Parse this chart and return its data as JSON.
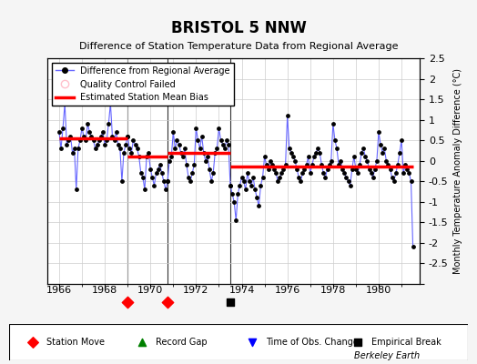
{
  "title": "BRISTOL 5 NNW",
  "subtitle": "Difference of Station Temperature Data from Regional Average",
  "ylabel_right": "Monthly Temperature Anomaly Difference (°C)",
  "credit": "Berkeley Earth",
  "xlim": [
    1965.5,
    1981.8
  ],
  "ylim": [
    -3.0,
    2.5
  ],
  "yticks": [
    -3,
    -2.5,
    -2,
    -1.5,
    -1,
    -0.5,
    0,
    0.5,
    1,
    1.5,
    2,
    2.5
  ],
  "xticks": [
    1966,
    1968,
    1970,
    1972,
    1974,
    1976,
    1978,
    1980
  ],
  "grid_color": "#cccccc",
  "line_color": "#6666ff",
  "dot_color": "#000000",
  "bias_color": "#ff0000",
  "segment_breaks": [
    1969.0,
    1970.75,
    1973.5
  ],
  "bias_values": [
    0.55,
    0.1,
    0.2,
    -0.15
  ],
  "station_moves": [
    1969.0,
    1970.75
  ],
  "empirical_breaks": [
    1973.5
  ],
  "time_obs_changes": [],
  "record_gaps": [],
  "data_x": [
    1966.0,
    1966.083,
    1966.167,
    1966.25,
    1966.333,
    1966.417,
    1966.5,
    1966.583,
    1966.667,
    1966.75,
    1966.833,
    1966.917,
    1967.0,
    1967.083,
    1967.167,
    1967.25,
    1967.333,
    1967.417,
    1967.5,
    1967.583,
    1967.667,
    1967.75,
    1967.833,
    1967.917,
    1968.0,
    1968.083,
    1968.167,
    1968.25,
    1968.333,
    1968.417,
    1968.5,
    1968.583,
    1968.667,
    1968.75,
    1968.833,
    1968.917,
    1969.0,
    1969.083,
    1969.167,
    1969.25,
    1969.333,
    1969.417,
    1969.5,
    1969.583,
    1969.667,
    1969.75,
    1969.833,
    1969.917,
    1970.0,
    1970.083,
    1970.167,
    1970.25,
    1970.333,
    1970.417,
    1970.5,
    1970.583,
    1970.667,
    1970.75,
    1970.833,
    1970.917,
    1971.0,
    1971.083,
    1971.167,
    1971.25,
    1971.333,
    1971.417,
    1971.5,
    1971.583,
    1971.667,
    1971.75,
    1971.833,
    1971.917,
    1972.0,
    1972.083,
    1972.167,
    1972.25,
    1972.333,
    1972.417,
    1972.5,
    1972.583,
    1972.667,
    1972.75,
    1972.833,
    1972.917,
    1973.0,
    1973.083,
    1973.167,
    1973.25,
    1973.333,
    1973.417,
    1973.5,
    1973.583,
    1973.667,
    1973.75,
    1973.833,
    1973.917,
    1974.0,
    1974.083,
    1974.167,
    1974.25,
    1974.333,
    1974.417,
    1974.5,
    1974.583,
    1974.667,
    1974.75,
    1974.833,
    1974.917,
    1975.0,
    1975.083,
    1975.167,
    1975.25,
    1975.333,
    1975.417,
    1975.5,
    1975.583,
    1975.667,
    1975.75,
    1975.833,
    1975.917,
    1976.0,
    1976.083,
    1976.167,
    1976.25,
    1976.333,
    1976.417,
    1976.5,
    1976.583,
    1976.667,
    1976.75,
    1976.833,
    1976.917,
    1977.0,
    1977.083,
    1977.167,
    1977.25,
    1977.333,
    1977.417,
    1977.5,
    1977.583,
    1977.667,
    1977.75,
    1977.833,
    1977.917,
    1978.0,
    1978.083,
    1978.167,
    1978.25,
    1978.333,
    1978.417,
    1978.5,
    1978.583,
    1978.667,
    1978.75,
    1978.833,
    1978.917,
    1979.0,
    1979.083,
    1979.167,
    1979.25,
    1979.333,
    1979.417,
    1979.5,
    1979.583,
    1979.667,
    1979.75,
    1979.833,
    1979.917,
    1980.0,
    1980.083,
    1980.167,
    1980.25,
    1980.333,
    1980.417,
    1980.5,
    1980.583,
    1980.667,
    1980.75,
    1980.833,
    1980.917,
    1981.0,
    1981.083,
    1981.167,
    1981.25,
    1981.333,
    1981.417,
    1981.5
  ],
  "data_y": [
    0.7,
    0.3,
    0.8,
    1.4,
    0.4,
    0.5,
    0.6,
    0.2,
    0.3,
    -0.7,
    0.3,
    0.5,
    0.8,
    0.6,
    0.5,
    0.9,
    0.7,
    0.6,
    0.5,
    0.3,
    0.4,
    0.5,
    0.6,
    0.7,
    0.4,
    0.5,
    0.9,
    1.4,
    0.6,
    0.5,
    0.7,
    0.4,
    0.3,
    -0.5,
    0.2,
    0.4,
    0.6,
    0.3,
    0.2,
    0.5,
    0.4,
    0.3,
    0.1,
    -0.3,
    -0.4,
    -0.7,
    0.1,
    0.2,
    -0.2,
    -0.4,
    -0.6,
    -0.3,
    -0.2,
    -0.1,
    -0.3,
    -0.5,
    -0.7,
    -0.5,
    0.0,
    0.1,
    0.7,
    0.3,
    0.5,
    0.4,
    0.2,
    0.1,
    0.3,
    -0.1,
    -0.4,
    -0.5,
    -0.3,
    -0.1,
    0.8,
    0.5,
    0.3,
    0.6,
    0.2,
    0.0,
    0.1,
    -0.2,
    -0.5,
    -0.3,
    0.2,
    0.3,
    0.8,
    0.5,
    0.4,
    0.3,
    0.5,
    0.4,
    -0.6,
    -0.8,
    -1.0,
    -1.45,
    -0.8,
    -0.6,
    -0.4,
    -0.5,
    -0.7,
    -0.3,
    -0.5,
    -0.6,
    -0.4,
    -0.7,
    -0.9,
    -1.1,
    -0.6,
    -0.4,
    0.1,
    -0.1,
    -0.2,
    0.0,
    -0.1,
    -0.2,
    -0.3,
    -0.5,
    -0.4,
    -0.3,
    -0.2,
    -0.1,
    1.1,
    0.3,
    0.2,
    0.1,
    0.0,
    -0.2,
    -0.4,
    -0.5,
    -0.3,
    -0.2,
    -0.1,
    0.1,
    -0.3,
    -0.1,
    0.1,
    0.2,
    0.3,
    0.2,
    -0.1,
    -0.3,
    -0.4,
    -0.2,
    -0.1,
    0.0,
    0.9,
    0.5,
    0.3,
    -0.1,
    0.0,
    -0.2,
    -0.3,
    -0.4,
    -0.5,
    -0.6,
    -0.2,
    0.1,
    -0.2,
    -0.3,
    -0.1,
    0.2,
    0.3,
    0.1,
    0.0,
    -0.2,
    -0.3,
    -0.4,
    -0.2,
    0.0,
    0.7,
    0.4,
    0.2,
    0.3,
    0.0,
    -0.1,
    -0.2,
    -0.4,
    -0.5,
    -0.3,
    -0.1,
    0.2,
    0.5,
    -0.3,
    -0.1,
    -0.2,
    -0.3,
    -0.5,
    -2.1
  ],
  "background_color": "#f5f5f5",
  "plot_bg": "#ffffff"
}
